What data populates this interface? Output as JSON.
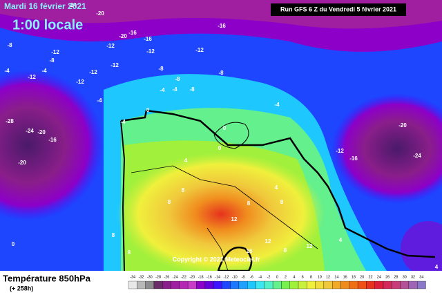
{
  "header": {
    "date": "Mardi 16 février 2021",
    "time": "1:00 locale",
    "run": "Run GFS 6 Z du Vendredi 5 février 2021"
  },
  "copyright": "Copyright © 2021 Meteociel.fr",
  "legend": {
    "title": "Température 850hPa",
    "subtitle": "(+ 258h)",
    "ticks": [
      -34,
      -32,
      -30,
      -28,
      -26,
      -24,
      -22,
      -20,
      -18,
      -16,
      -14,
      -12,
      -10,
      -8,
      -6,
      -4,
      -2,
      0,
      2,
      4,
      6,
      8,
      10,
      12,
      14,
      16,
      18,
      20,
      22,
      24,
      26,
      28,
      30,
      32,
      34
    ],
    "colors": [
      "#e8e8e8",
      "#b8b8b8",
      "#8c8c8c",
      "#6a2d6a",
      "#8a1e8a",
      "#a01ea0",
      "#b428b4",
      "#c83cc8",
      "#8c00c8",
      "#6400dc",
      "#3c14ff",
      "#1e46ff",
      "#1e78ff",
      "#1ea0ff",
      "#1ec8ff",
      "#3ce6f0",
      "#50f0c8",
      "#64f08c",
      "#78f050",
      "#a0f03c",
      "#c8f03c",
      "#f0f03c",
      "#f0dc3c",
      "#f0c83c",
      "#f0aa28",
      "#f08c1e",
      "#f06e14",
      "#f05014",
      "#e6321e",
      "#dc1e3c",
      "#d2285a",
      "#c83c78",
      "#b45096",
      "#a064b4",
      "#8c78c8"
    ]
  },
  "map_labels": [
    -24,
    -20,
    -16,
    -20,
    -16,
    -16,
    -12,
    -12,
    -12,
    -8,
    -12,
    -8,
    -12,
    -12,
    -12,
    -8,
    -8,
    -4,
    -4,
    -12,
    -4,
    -8,
    -4,
    -4,
    -8,
    -4,
    0,
    -4,
    -28,
    -24,
    -20,
    -16,
    -20,
    4,
    -12,
    -16,
    -20,
    -24,
    8,
    8,
    12,
    8,
    8,
    4,
    8,
    0,
    12,
    12,
    8,
    4,
    8,
    16,
    4,
    0,
    0
  ]
}
